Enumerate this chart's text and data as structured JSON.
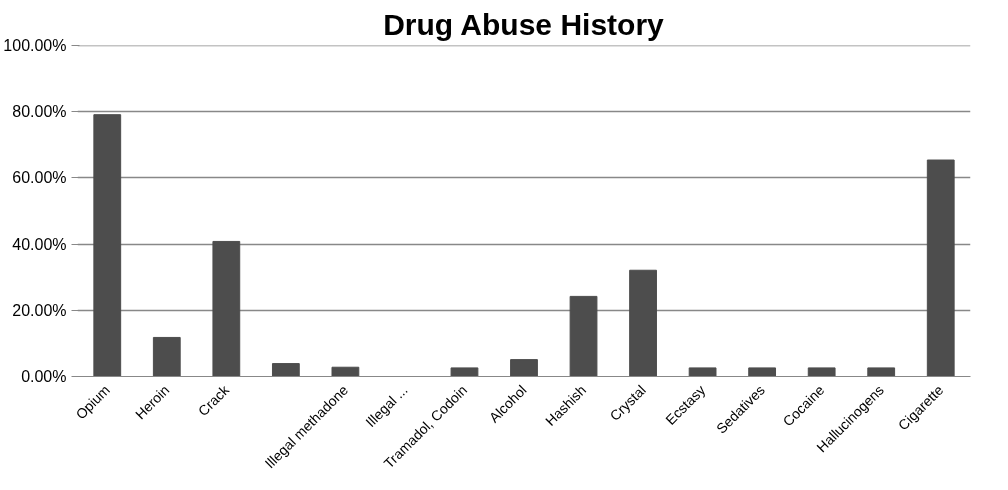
{
  "chart_data": {
    "type": "bar",
    "title": "Drug Abuse History",
    "categories": [
      "Opium",
      "Heroin",
      "Crack",
      null,
      "Illegal methadone",
      "Illegal ...",
      "Tramadol, Codoin",
      "Alcohol",
      "Hashish",
      "Crystal",
      "Ecstasy",
      "Sedatives",
      "Cocaine",
      "Hallucinogens",
      "Cigarette"
    ],
    "values": [
      79.1,
      11.8,
      40.8,
      3.9,
      2.8,
      0,
      2.6,
      5.1,
      24.2,
      32.1,
      2.6,
      2.6,
      2.6,
      2.6,
      65.4
    ],
    "color": "#4d4d4d",
    "ylim": [
      0,
      100
    ],
    "yticks": [
      {
        "value": 0,
        "label": "0.00%"
      },
      {
        "value": 20,
        "label": "20.00%"
      },
      {
        "value": 40,
        "label": "40.00%"
      },
      {
        "value": 60,
        "label": "60.00%"
      },
      {
        "value": 80,
        "label": "80.00%"
      },
      {
        "value": 100,
        "label": "100.00%"
      }
    ],
    "grid": "y"
  }
}
